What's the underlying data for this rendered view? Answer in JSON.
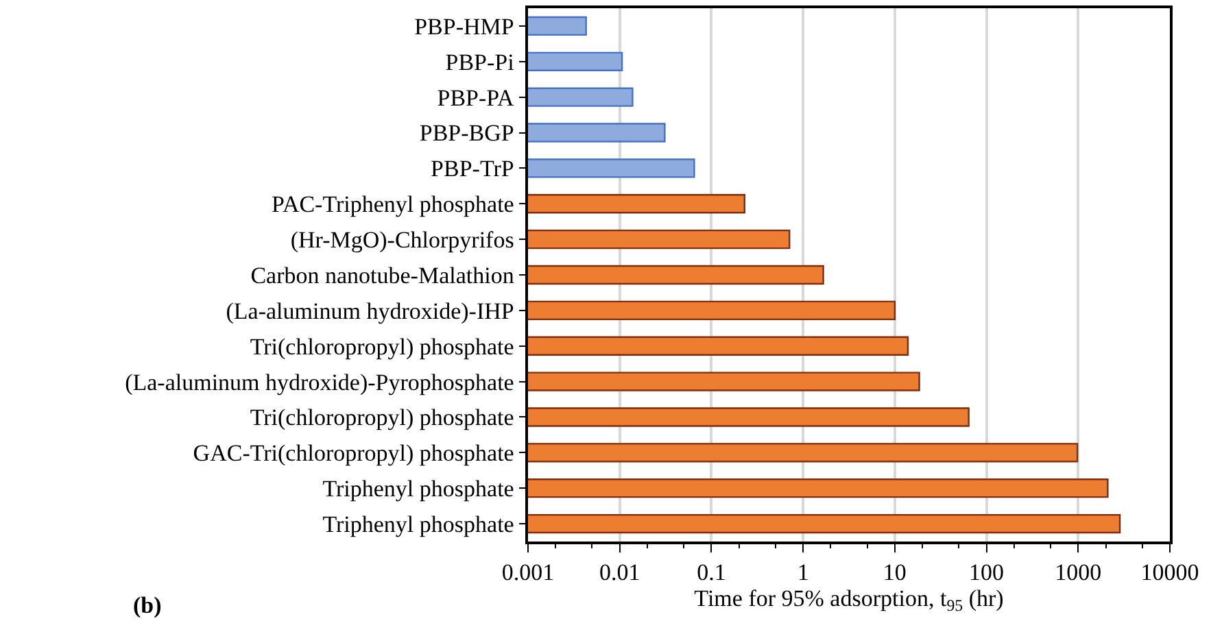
{
  "chart_data": {
    "type": "bar",
    "orientation": "horizontal",
    "log": "x",
    "xlabel": "Time for 95% adsorption, t$_{95}$ (hr)",
    "categories": [
      "PBP-HMP",
      "PBP-Pi",
      "PBP-PA",
      "PBP-BGP",
      "PBP-TrP",
      "PAC-Triphenyl phosphate",
      "(Hr-MgO)-Chlorpyrifos",
      "Carbon nanotube-Malathion",
      "(La-aluminum hydroxide)-IHP",
      "Tri(chloropropyl) phosphate",
      "(La-aluminum hydroxide)-Pyrophosphate",
      "Tri(chloropropyl) phosphate",
      "GAC-Tri(chloropropyl) phosphate",
      "Triphenyl phosphate",
      "Triphenyl phosphate"
    ],
    "values": [
      0.0043,
      0.0106,
      0.0138,
      0.031,
      0.065,
      0.23,
      0.71,
      1.66,
      10,
      13.9,
      18.5,
      64,
      980,
      2100,
      2850
    ],
    "colors": [
      "#8faadc",
      "#8faadc",
      "#8faadc",
      "#8faadc",
      "#8faadc",
      "#ed7d31",
      "#ed7d31",
      "#ed7d31",
      "#ed7d31",
      "#ed7d31",
      "#ed7d31",
      "#ed7d31",
      "#ed7d31",
      "#ed7d31",
      "#ed7d31"
    ],
    "xlim": [
      0.001,
      10000
    ],
    "xticks": [
      0.001,
      0.01,
      0.1,
      1,
      10,
      100,
      1000,
      10000
    ],
    "grid": "x",
    "annotations": [
      "(b)"
    ]
  }
}
